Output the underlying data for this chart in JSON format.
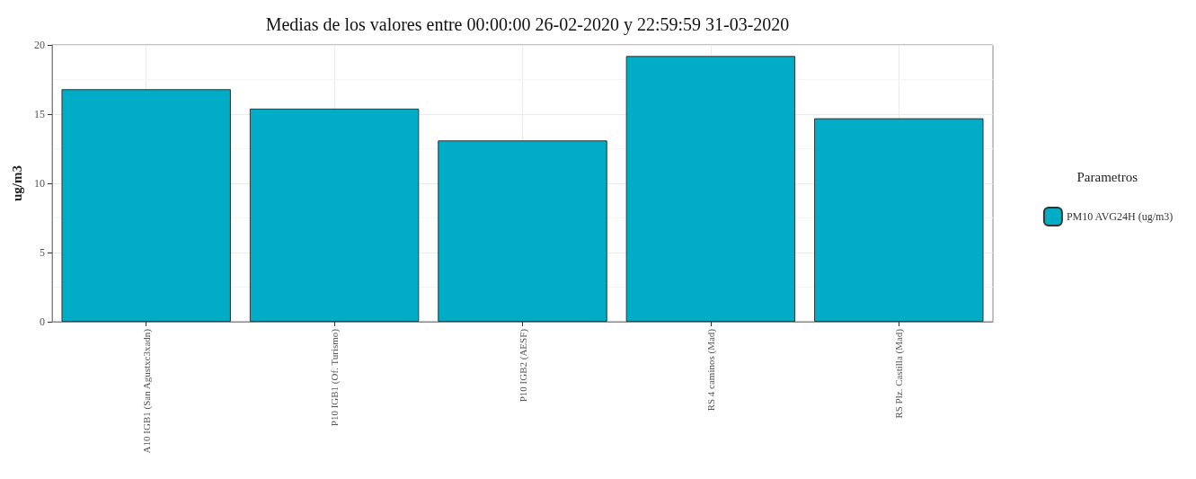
{
  "chart_data": {
    "type": "bar",
    "title": "Medias de los valores entre 00:00:00 26-02-2020 y 22:59:59 31-03-2020",
    "ylabel": "ug/m3",
    "legend_title": "Parametros",
    "categories": [
      "A10 IGB1 (San Agustxc3xadn)",
      "P10 IGB1 (Of. Turismo)",
      "P10 IGB2 (AESF)",
      "RS 4 caminos (Mad)",
      "RS Plz. Castilla (Mad)"
    ],
    "series": [
      {
        "name": "PM10 AVG24H (ug/m3)",
        "color": "#00acc6",
        "values": [
          16.8,
          15.4,
          13.1,
          19.2,
          14.7
        ]
      }
    ],
    "ylim": [
      0,
      20
    ],
    "yticks": [
      0,
      5,
      10,
      15,
      20
    ],
    "grid": true,
    "legend": "right"
  }
}
